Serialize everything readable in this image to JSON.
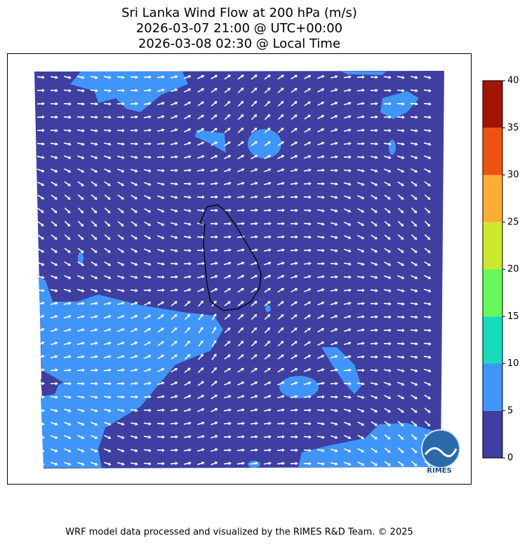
{
  "header": {
    "title": "Sri Lanka Wind Flow at 200 hPa (m/s)",
    "utc_time": "2026-03-07 21:00 @ UTC+00:00",
    "local_time": "2026-03-08 02:30 @ Local Time"
  },
  "colorbar": {
    "levels": [
      0,
      5,
      10,
      15,
      20,
      25,
      30,
      35,
      40
    ],
    "colors": [
      "#3e3fa0",
      "#4096f8",
      "#16dcbd",
      "#66f95b",
      "#cde82c",
      "#fdac35",
      "#ee520e",
      "#a21502"
    ]
  },
  "logo": {
    "text": "RIMES"
  },
  "footer": {
    "text": "WRF model data processed and visualized by the RIMES R&D Team. © 2025"
  }
}
